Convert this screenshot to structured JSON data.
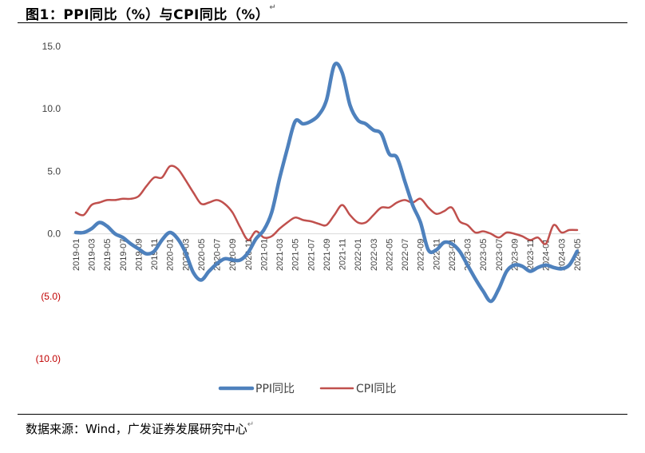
{
  "header": {
    "title": "图1：PPI同比（%）与CPI同比（%）",
    "mark": "↵"
  },
  "footer": {
    "source": "数据来源：Wind，广发证券发展研究中心",
    "mark": "↵"
  },
  "colors": {
    "ppi": "#4e81bd",
    "cpi": "#c0504d",
    "negative_tick": "#c00000"
  },
  "chart_data": {
    "type": "line",
    "title": "PPI同比（%）与CPI同比（%）",
    "xlabel": "",
    "ylabel": "",
    "ylim": [
      -10,
      15
    ],
    "yticks": [
      {
        "value": 15,
        "label": "15.0"
      },
      {
        "value": 10,
        "label": "10.0"
      },
      {
        "value": 5,
        "label": "5.0"
      },
      {
        "value": 0,
        "label": "0.0"
      },
      {
        "value": -5,
        "label": "(5.0)"
      },
      {
        "value": -10,
        "label": "(10.0)"
      }
    ],
    "grid": false,
    "legend": "bottom",
    "x": [
      "2019-01",
      "2019-02",
      "2019-03",
      "2019-04",
      "2019-05",
      "2019-06",
      "2019-07",
      "2019-08",
      "2019-09",
      "2019-10",
      "2019-11",
      "2019-12",
      "2020-01",
      "2020-02",
      "2020-03",
      "2020-04",
      "2020-05",
      "2020-06",
      "2020-07",
      "2020-08",
      "2020-09",
      "2020-10",
      "2020-11",
      "2020-12",
      "2021-01",
      "2021-02",
      "2021-03",
      "2021-04",
      "2021-05",
      "2021-06",
      "2021-07",
      "2021-08",
      "2021-09",
      "2021-10",
      "2021-11",
      "2021-12",
      "2022-01",
      "2022-02",
      "2022-03",
      "2022-04",
      "2022-05",
      "2022-06",
      "2022-07",
      "2022-08",
      "2022-09",
      "2022-10",
      "2022-11",
      "2022-12",
      "2023-01",
      "2023-02",
      "2023-03",
      "2023-04",
      "2023-05",
      "2023-06",
      "2023-07",
      "2023-08",
      "2023-09",
      "2023-10",
      "2023-11",
      "2023-12",
      "2024-01",
      "2024-02",
      "2024-03",
      "2024-04",
      "2024-05"
    ],
    "xtick_labels": [
      "2019-01",
      "2019-03",
      "2019-05",
      "2019-07",
      "2019-09",
      "2019-11",
      "2020-01",
      "2020-03",
      "2020-05",
      "2020-07",
      "2020-09",
      "2020-11",
      "2021-01",
      "2021-03",
      "2021-05",
      "2021-07",
      "2021-09",
      "2021-11",
      "2022-01",
      "2022-03",
      "2022-05",
      "2022-07",
      "2022-09",
      "2022-11",
      "2023-01",
      "2023-03",
      "2023-05",
      "2023-07",
      "2023-09",
      "2023-11",
      "2024-01",
      "2024-03",
      "2024-05"
    ],
    "series": [
      {
        "name": "PPI同比",
        "color": "#4e81bd",
        "values": [
          0.1,
          0.1,
          0.4,
          0.9,
          0.6,
          0.0,
          -0.3,
          -0.8,
          -1.2,
          -1.6,
          -1.4,
          -0.5,
          0.1,
          -0.4,
          -1.5,
          -3.1,
          -3.7,
          -3.0,
          -2.4,
          -2.0,
          -2.1,
          -2.1,
          -1.5,
          -0.4,
          0.3,
          1.7,
          4.4,
          6.8,
          9.0,
          8.8,
          9.0,
          9.5,
          10.7,
          13.5,
          12.9,
          10.3,
          9.1,
          8.8,
          8.3,
          8.0,
          6.4,
          6.1,
          4.2,
          2.3,
          0.9,
          -1.3,
          -1.3,
          -0.7,
          -0.8,
          -1.4,
          -2.5,
          -3.6,
          -4.6,
          -5.4,
          -4.4,
          -3.0,
          -2.5,
          -2.6,
          -3.0,
          -2.7,
          -2.5,
          -2.7,
          -2.8,
          -2.5,
          -1.4
        ]
      },
      {
        "name": "CPI同比",
        "color": "#c0504d",
        "values": [
          1.7,
          1.5,
          2.3,
          2.5,
          2.7,
          2.7,
          2.8,
          2.8,
          3.0,
          3.8,
          4.5,
          4.5,
          5.4,
          5.2,
          4.3,
          3.3,
          2.4,
          2.5,
          2.7,
          2.4,
          1.7,
          0.5,
          -0.5,
          0.2,
          -0.3,
          -0.2,
          0.4,
          0.9,
          1.3,
          1.1,
          1.0,
          0.8,
          0.7,
          1.5,
          2.3,
          1.5,
          0.9,
          0.9,
          1.5,
          2.1,
          2.1,
          2.5,
          2.7,
          2.5,
          2.8,
          2.1,
          1.6,
          1.8,
          2.1,
          1.0,
          0.7,
          0.1,
          0.2,
          0.0,
          -0.3,
          0.1,
          0.0,
          -0.2,
          -0.5,
          -0.3,
          -0.8,
          0.7,
          0.1,
          0.3,
          0.3
        ]
      }
    ]
  }
}
